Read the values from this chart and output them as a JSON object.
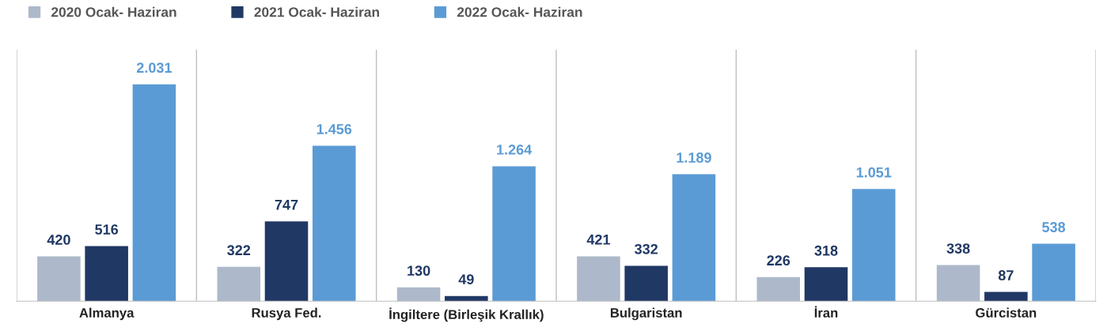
{
  "chart_data": {
    "type": "bar",
    "categories": [
      "Almanya",
      "Rusya Fed.",
      "İngiltere (Birleşik Krallık)",
      "Bulgaristan",
      "İran",
      "Gürcistan"
    ],
    "series": [
      {
        "name": "2020 Ocak- Haziran",
        "color": "#adb9ca",
        "values": [
          420,
          322,
          130,
          421,
          226,
          338
        ],
        "value_labels": [
          "420",
          "322",
          "130",
          "421",
          "226",
          "338"
        ]
      },
      {
        "name": "2021 Ocak- Haziran",
        "color": "#203864",
        "values": [
          516,
          747,
          49,
          332,
          318,
          87
        ],
        "value_labels": [
          "516",
          "747",
          "49",
          "332",
          "318",
          "87"
        ]
      },
      {
        "name": "2022 Ocak- Haziran",
        "color": "#5b9bd5",
        "values": [
          2031,
          1456,
          1264,
          1189,
          1051,
          538
        ],
        "value_labels": [
          "2.031",
          "1.456",
          "1.264",
          "1.189",
          "1.051",
          "538"
        ]
      }
    ],
    "grid": "x",
    "legend": "top left",
    "tick_labels": "x"
  }
}
